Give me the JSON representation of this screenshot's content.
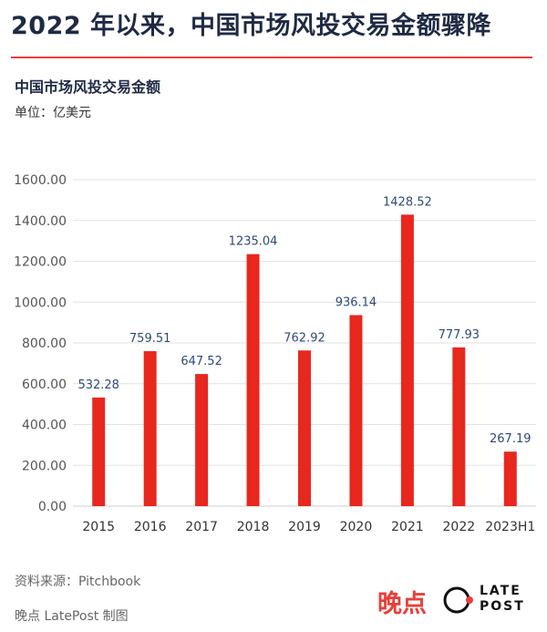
{
  "headline": "2022 年以来，中国市场风投交易金额骤降",
  "chart_data": {
    "type": "bar",
    "title": "中国市场风投交易金额",
    "unit_label": "单位：亿美元",
    "categories": [
      "2015",
      "2016",
      "2017",
      "2018",
      "2019",
      "2020",
      "2021",
      "2022",
      "2023H1"
    ],
    "values": [
      532.28,
      759.51,
      647.52,
      1235.04,
      762.92,
      936.14,
      1428.52,
      777.93,
      267.19
    ],
    "data_labels": [
      "532.28",
      "759.51",
      "647.52",
      "1235.04",
      "762.92",
      "936.14",
      "1428.52",
      "777.93",
      "267.19"
    ],
    "yticks": [
      "0.00",
      "200.00",
      "400.00",
      "600.00",
      "800.00",
      "1000.00",
      "1200.00",
      "1400.00",
      "1600.00"
    ],
    "ylim": [
      0,
      1600
    ],
    "grid": true,
    "bar_color": "#e8271f",
    "label_color": "#2f4a7a"
  },
  "footer": {
    "source": "资料来源：Pitchbook",
    "credit": "晚点 LatePost 制图"
  },
  "logo": {
    "cn": "晚点",
    "en_line1": "LATE",
    "en_line2": "POST"
  }
}
